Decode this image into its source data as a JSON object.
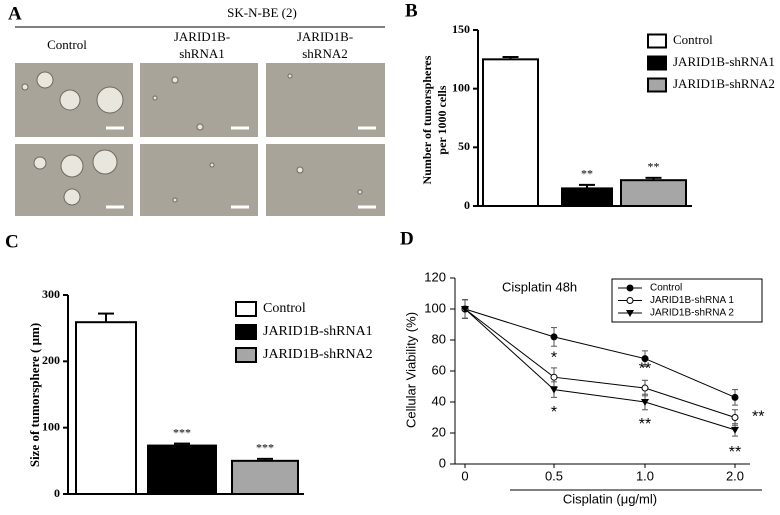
{
  "panel_a": {
    "label": "A",
    "title": "SK-N-BE (2)",
    "columns": [
      {
        "lines": [
          "Control"
        ]
      },
      {
        "lines": [
          "JARID1B-",
          "shRNA1"
        ]
      },
      {
        "lines": [
          "JARID1B-",
          "shRNA2"
        ]
      }
    ]
  },
  "chart_data": [
    {
      "panel": "B",
      "type": "bar",
      "ylabel": [
        "Number of tumorspheres",
        "per 1000 cells"
      ],
      "ylim": [
        0,
        150
      ],
      "yticks": [
        0,
        50,
        100,
        150
      ],
      "series": [
        {
          "name": "Control",
          "color": "#ffffff",
          "values": [
            125
          ],
          "errors": [
            2
          ]
        },
        {
          "name": "JARID1B-shRNA1",
          "color": "#000000",
          "values": [
            15
          ],
          "errors": [
            3
          ],
          "annotation": "**"
        },
        {
          "name": "JARID1B-shRNA2",
          "color": "#a6a6a6",
          "values": [
            22
          ],
          "errors": [
            2
          ],
          "annotation": "**"
        }
      ]
    },
    {
      "panel": "C",
      "type": "bar",
      "ylabel": [
        "Size of tumorsphere ( μm)"
      ],
      "ylim": [
        0,
        300
      ],
      "yticks": [
        0,
        100,
        200,
        300
      ],
      "series": [
        {
          "name": "Control",
          "color": "#ffffff",
          "values": [
            259
          ],
          "errors": [
            13
          ]
        },
        {
          "name": "JARID1B-shRNA1",
          "color": "#000000",
          "values": [
            73
          ],
          "errors": [
            3
          ],
          "annotation": "***"
        },
        {
          "name": "JARID1B-shRNA2",
          "color": "#a6a6a6",
          "values": [
            50
          ],
          "errors": [
            3
          ],
          "annotation": "***"
        }
      ]
    },
    {
      "panel": "D",
      "type": "line",
      "title": "Cisplatin 48h",
      "xlabel": "Cisplatin (μg/ml)",
      "ylabel": "Cellular Viability (%)",
      "categories": [
        "0",
        "0.5",
        "1.0",
        "2.0"
      ],
      "ylim": [
        0,
        120
      ],
      "yticks": [
        0,
        20,
        40,
        60,
        80,
        100,
        120
      ],
      "series": [
        {
          "name": "Control",
          "color": "#000000",
          "marker": "filled-circle",
          "values": [
            100,
            82,
            68,
            43
          ],
          "errors": [
            6,
            6,
            5,
            5
          ]
        },
        {
          "name": "JARID1B-shRNA 1",
          "color": "#000000",
          "marker": "open-circle",
          "values": [
            100,
            56,
            49,
            30
          ],
          "errors": [
            6,
            6,
            5,
            5
          ],
          "annotations": [
            null,
            "*",
            "**",
            "**"
          ]
        },
        {
          "name": "JARID1B-shRNA 2",
          "color": "#000000",
          "marker": "triangle-down",
          "values": [
            100,
            48,
            40,
            22
          ],
          "errors": [
            6,
            5,
            5,
            4
          ],
          "annotations": [
            null,
            "*",
            "**",
            "**"
          ]
        }
      ]
    }
  ]
}
